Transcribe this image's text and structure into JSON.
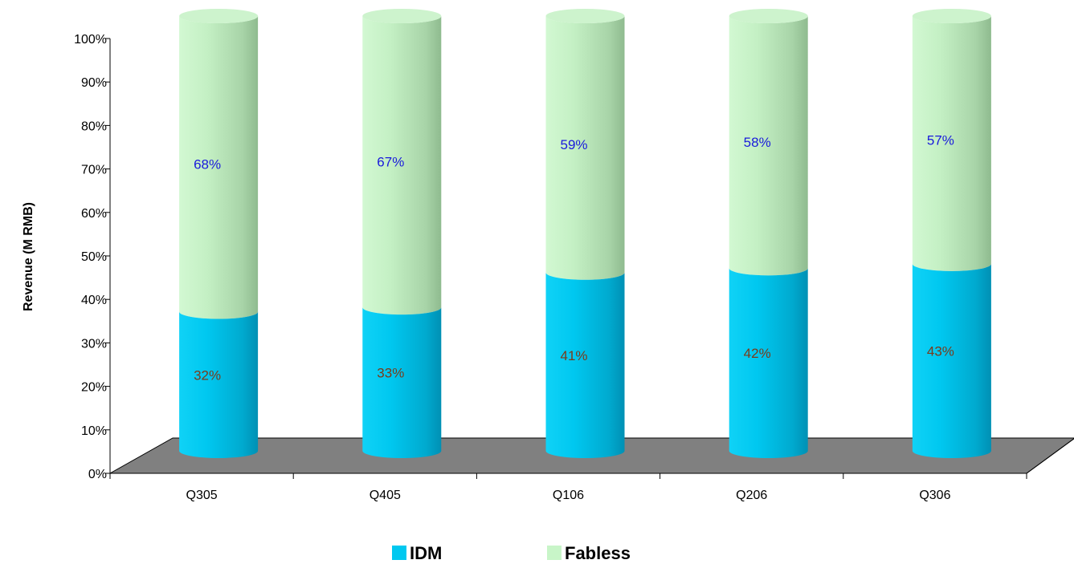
{
  "chart_data": {
    "type": "bar",
    "stacked": true,
    "percent_stacked": true,
    "style": "3d-cylinder",
    "title": "",
    "xlabel": "",
    "ylabel": "Revenue (M RMB)",
    "ylim": [
      0,
      100
    ],
    "y_ticks": [
      "0%",
      "10%",
      "20%",
      "30%",
      "40%",
      "50%",
      "60%",
      "70%",
      "80%",
      "90%",
      "100%"
    ],
    "categories": [
      "Q305",
      "Q405",
      "Q106",
      "Q206",
      "Q306"
    ],
    "series": [
      {
        "name": "IDM",
        "values": [
          32,
          33,
          41,
          42,
          43
        ],
        "labels": [
          "32%",
          "33%",
          "41%",
          "42%",
          "43%"
        ],
        "color": "#00c8f0",
        "label_color": "#7a3b1a"
      },
      {
        "name": "Fabless",
        "values": [
          68,
          67,
          59,
          58,
          57
        ],
        "labels": [
          "68%",
          "67%",
          "59%",
          "58%",
          "57%"
        ],
        "color": "#c8f5c8",
        "label_color": "#1a1adc"
      }
    ],
    "floor_color": "#808080",
    "legend_position": "bottom",
    "grid": false
  }
}
